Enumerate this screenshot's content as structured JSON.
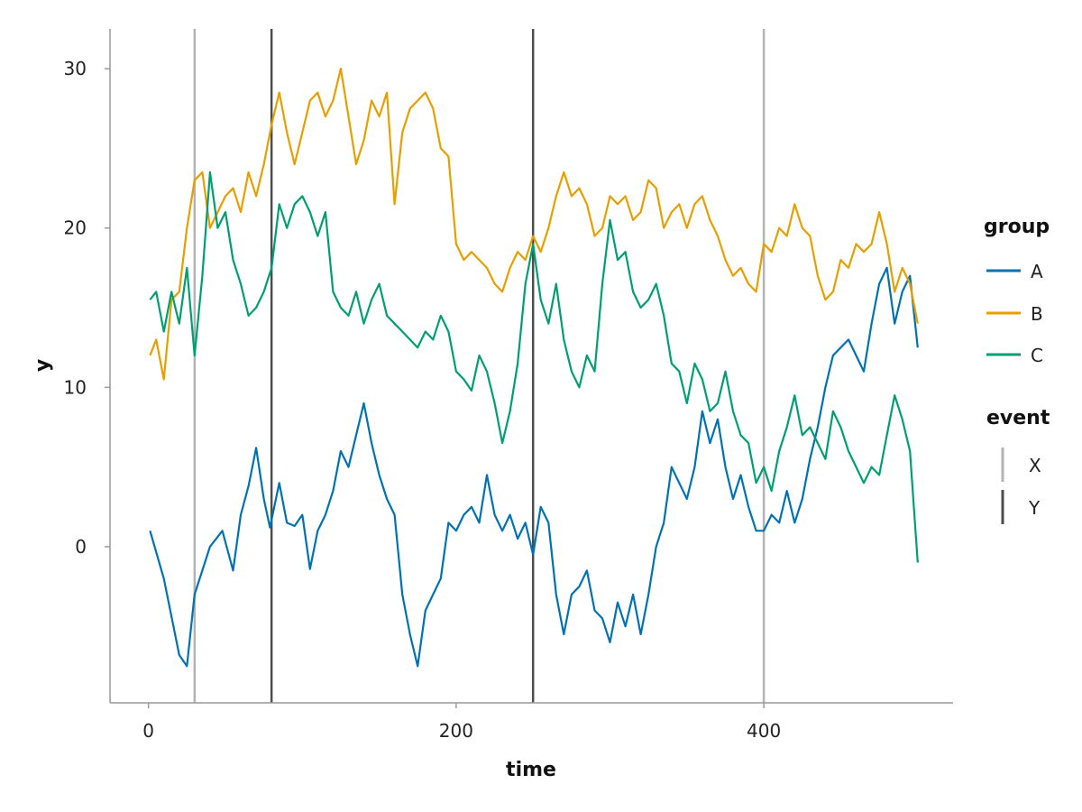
{
  "chart_data": {
    "type": "line",
    "xlabel": "time",
    "ylabel": "y",
    "xlim": [
      -25,
      523
    ],
    "ylim": [
      -9.8,
      32.5
    ],
    "xticks": [
      0,
      200,
      400
    ],
    "yticks": [
      0,
      10,
      20,
      30
    ],
    "grid": false,
    "legend_placement": "right",
    "series": [
      {
        "name": "A",
        "color": "#0072B2",
        "x": [
          1,
          10,
          20,
          25,
          30,
          40,
          48,
          55,
          60,
          65,
          70,
          75,
          79,
          85,
          90,
          95,
          100,
          105,
          110,
          115,
          120,
          125,
          130,
          135,
          140,
          145,
          150,
          155,
          160,
          165,
          170,
          175,
          180,
          185,
          190,
          195,
          200,
          205,
          210,
          215,
          220,
          225,
          230,
          235,
          240,
          245,
          250,
          255,
          260,
          265,
          270,
          275,
          280,
          285,
          290,
          295,
          300,
          305,
          310,
          315,
          320,
          325,
          330,
          335,
          340,
          345,
          350,
          355,
          360,
          365,
          370,
          375,
          380,
          385,
          390,
          395,
          400,
          405,
          410,
          415,
          420,
          425,
          430,
          435,
          440,
          445,
          450,
          455,
          460,
          465,
          470,
          475,
          480,
          485,
          490,
          495,
          500
        ],
        "y": [
          1.0,
          -2.0,
          -6.8,
          -7.5,
          -3.0,
          0.0,
          1.0,
          -1.5,
          2.0,
          3.8,
          6.2,
          3.0,
          1.2,
          4.0,
          1.5,
          1.3,
          2.0,
          -1.4,
          1.0,
          2.0,
          3.5,
          6.0,
          5.0,
          7.0,
          9.0,
          6.5,
          4.5,
          3.0,
          2.0,
          -3.0,
          -5.5,
          -7.5,
          -4.0,
          -3.0,
          -2.0,
          1.5,
          1.0,
          2.0,
          2.5,
          1.5,
          4.5,
          2.0,
          1.0,
          2.0,
          0.5,
          1.5,
          -0.5,
          2.5,
          1.5,
          -3.0,
          -5.5,
          -3.0,
          -2.5,
          -1.5,
          -4.0,
          -4.5,
          -6.0,
          -3.5,
          -5.0,
          -3.0,
          -5.5,
          -3.0,
          0.0,
          1.5,
          5.0,
          4.0,
          3.0,
          5.0,
          8.5,
          6.5,
          8.0,
          5.0,
          3.0,
          4.5,
          2.5,
          1.0,
          1.0,
          2.0,
          1.5,
          3.5,
          1.5,
          3.0,
          5.5,
          7.5,
          10.0,
          12.0,
          12.5,
          13.0,
          12.0,
          11.0,
          14.0,
          16.5,
          17.5,
          14.0,
          16.0,
          17.0,
          12.5
        ]
      },
      {
        "name": "B",
        "color": "#E69F00",
        "x": [
          1,
          5,
          10,
          15,
          20,
          25,
          30,
          35,
          40,
          45,
          50,
          55,
          60,
          65,
          70,
          75,
          80,
          85,
          90,
          95,
          100,
          105,
          110,
          115,
          120,
          125,
          130,
          135,
          140,
          145,
          150,
          155,
          160,
          165,
          170,
          175,
          180,
          185,
          190,
          195,
          200,
          205,
          210,
          215,
          220,
          225,
          230,
          235,
          240,
          245,
          250,
          255,
          260,
          265,
          270,
          275,
          280,
          285,
          290,
          295,
          300,
          305,
          310,
          315,
          320,
          325,
          330,
          335,
          340,
          345,
          350,
          355,
          360,
          365,
          370,
          375,
          380,
          385,
          390,
          395,
          400,
          405,
          410,
          415,
          420,
          425,
          430,
          435,
          440,
          445,
          450,
          455,
          460,
          465,
          470,
          475,
          480,
          485,
          490,
          495,
          500
        ],
        "y": [
          12.0,
          13.0,
          10.5,
          15.5,
          16.0,
          20.0,
          23.0,
          23.5,
          20.0,
          21.0,
          22.0,
          22.5,
          21.0,
          23.5,
          22.0,
          24.0,
          26.5,
          28.5,
          26.0,
          24.0,
          26.0,
          28.0,
          28.5,
          27.0,
          28.0,
          30.0,
          27.0,
          24.0,
          25.5,
          28.0,
          27.0,
          28.5,
          21.5,
          26.0,
          27.5,
          28.0,
          28.5,
          27.5,
          25.0,
          24.5,
          19.0,
          18.0,
          18.5,
          18.0,
          17.5,
          16.5,
          16.0,
          17.5,
          18.5,
          18.0,
          19.5,
          18.5,
          20.0,
          22.0,
          23.5,
          22.0,
          22.5,
          21.5,
          19.5,
          20.0,
          22.0,
          21.5,
          22.0,
          20.5,
          21.0,
          23.0,
          22.5,
          20.0,
          21.0,
          21.5,
          20.0,
          21.5,
          22.0,
          20.5,
          19.5,
          18.0,
          17.0,
          17.5,
          16.5,
          16.0,
          19.0,
          18.5,
          20.0,
          19.5,
          21.5,
          20.0,
          19.5,
          17.0,
          15.5,
          16.0,
          18.0,
          17.5,
          19.0,
          18.5,
          19.0,
          21.0,
          19.0,
          16.0,
          17.5,
          16.5,
          14.0
        ]
      },
      {
        "name": "C",
        "color": "#009E73",
        "x": [
          1,
          5,
          10,
          15,
          20,
          25,
          30,
          35,
          40,
          45,
          50,
          55,
          60,
          65,
          70,
          75,
          80,
          85,
          90,
          95,
          100,
          105,
          110,
          115,
          120,
          125,
          130,
          135,
          140,
          145,
          150,
          155,
          160,
          165,
          170,
          175,
          180,
          185,
          190,
          195,
          200,
          205,
          210,
          215,
          220,
          225,
          230,
          235,
          240,
          245,
          250,
          255,
          260,
          265,
          270,
          275,
          280,
          285,
          290,
          295,
          300,
          305,
          310,
          315,
          320,
          325,
          330,
          335,
          340,
          345,
          350,
          355,
          360,
          365,
          370,
          375,
          380,
          385,
          390,
          395,
          400,
          405,
          410,
          415,
          420,
          425,
          430,
          435,
          440,
          445,
          450,
          455,
          460,
          465,
          470,
          475,
          480,
          485,
          490,
          495,
          500
        ],
        "y": [
          15.5,
          16.0,
          13.5,
          16.0,
          14.0,
          17.5,
          12.0,
          17.0,
          23.5,
          20.0,
          21.0,
          18.0,
          16.5,
          14.5,
          15.0,
          16.0,
          17.5,
          21.5,
          20.0,
          21.5,
          22.0,
          21.0,
          19.5,
          21.0,
          16.0,
          15.0,
          14.5,
          16.0,
          14.0,
          15.5,
          16.5,
          14.5,
          14.0,
          13.5,
          13.0,
          12.5,
          13.5,
          13.0,
          14.5,
          13.5,
          11.0,
          10.5,
          9.8,
          12.0,
          11.0,
          9.0,
          6.5,
          8.5,
          11.5,
          16.5,
          19.0,
          15.5,
          14.0,
          16.5,
          13.0,
          11.0,
          10.0,
          12.0,
          11.0,
          16.5,
          20.5,
          18.0,
          18.5,
          16.0,
          15.0,
          15.5,
          16.5,
          14.5,
          11.5,
          11.0,
          9.0,
          11.5,
          10.5,
          8.5,
          9.0,
          11.0,
          8.5,
          7.0,
          6.5,
          4.0,
          5.0,
          3.5,
          6.0,
          7.5,
          9.5,
          7.0,
          7.5,
          6.5,
          5.5,
          8.5,
          7.5,
          6.0,
          5.0,
          4.0,
          5.0,
          4.5,
          7.0,
          9.5,
          8.0,
          6.0,
          -1.0
        ]
      }
    ],
    "events": [
      {
        "name": "X",
        "color": "#b3b3b3",
        "x": [
          30,
          400
        ]
      },
      {
        "name": "Y",
        "color": "#4d4d4d",
        "x": [
          80,
          250
        ]
      }
    ],
    "legend": {
      "group_title": "group",
      "group_items": [
        "A",
        "B",
        "C"
      ],
      "event_title": "event",
      "event_items": [
        "X",
        "Y"
      ]
    }
  }
}
